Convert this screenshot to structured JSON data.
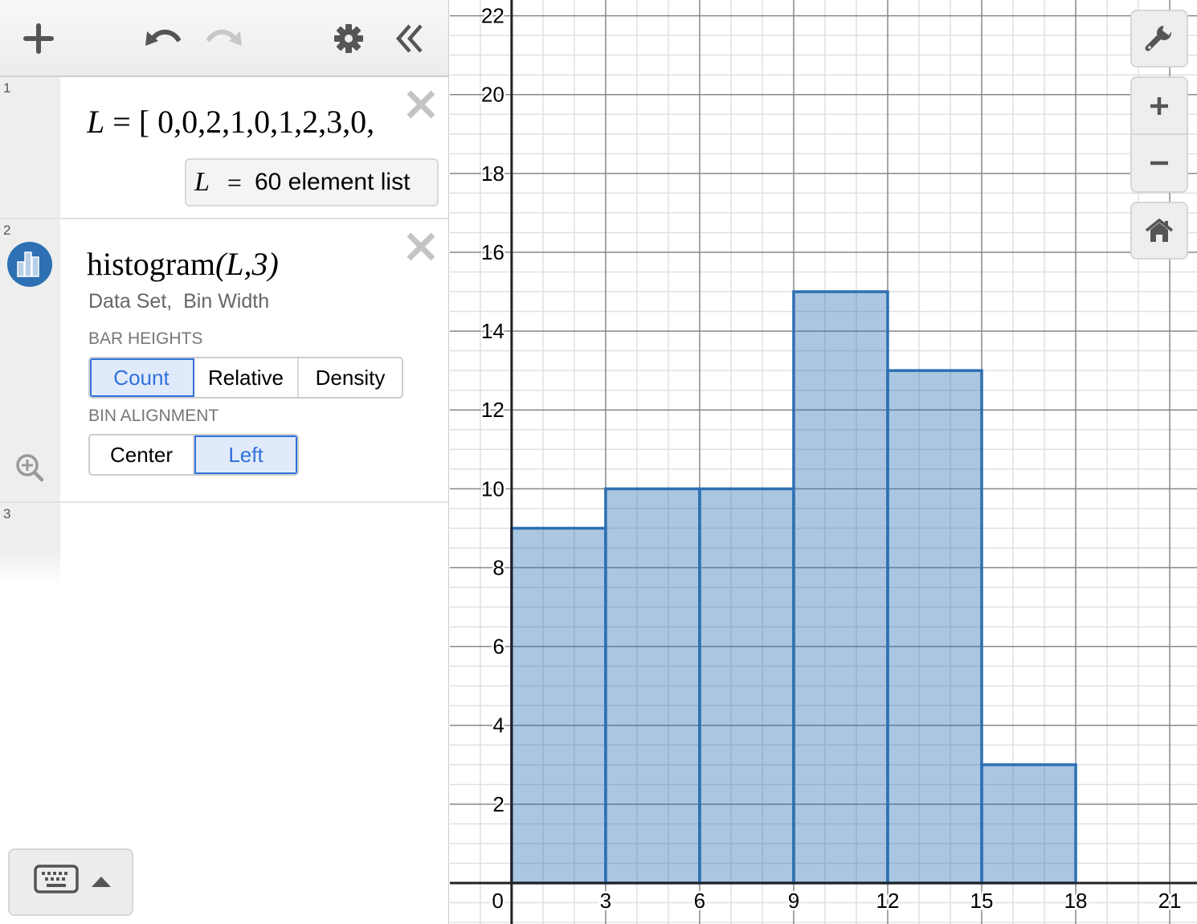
{
  "toolbar": {
    "add": "plus-icon",
    "undo": "undo-icon",
    "redo": "redo-icon",
    "settings": "gear-icon",
    "collapse": "double-chevron-left-icon"
  },
  "expressions": [
    {
      "number": "1",
      "lhs": "L",
      "eq": "=",
      "rhs": "[ 0,0,2,1,0,1,2,3,0,",
      "summary_var": "L",
      "summary_eq": "=",
      "summary_value": "60 element list"
    },
    {
      "number": "2",
      "formula_fn": "histogram",
      "formula_args": "(L,3)",
      "hint": "Data Set,  Bin Width",
      "bar_heights_label": "BAR HEIGHTS",
      "bar_heights_options": [
        "Count",
        "Relative",
        "Density"
      ],
      "bar_heights_selected": "Count",
      "bin_alignment_label": "BIN ALIGNMENT",
      "bin_alignment_options": [
        "Center",
        "Left"
      ],
      "bin_alignment_selected": "Left"
    },
    {
      "number": "3"
    }
  ],
  "graph_controls": {
    "wrench": "wrench-icon",
    "zoom_in": "plus-icon",
    "zoom_out": "minus-icon",
    "home": "home-icon"
  },
  "keyboard": {
    "icon": "keyboard-icon",
    "toggle": "caret-up-icon"
  },
  "colors": {
    "histogram": "#2d70b3",
    "selected": "#2f72dc"
  },
  "chart_data": {
    "type": "bar",
    "bins": [
      [
        0,
        3
      ],
      [
        3,
        6
      ],
      [
        6,
        9
      ],
      [
        9,
        12
      ],
      [
        12,
        15
      ],
      [
        15,
        18
      ]
    ],
    "values": [
      9,
      10,
      10,
      15,
      13,
      3
    ],
    "xlim": [
      -1.97,
      21.87
    ],
    "ylim": [
      -1.04,
      22.4
    ],
    "x_ticks": [
      "0",
      "3",
      "6",
      "9",
      "12",
      "15",
      "18",
      "21"
    ],
    "y_ticks": [
      "2",
      "4",
      "6",
      "8",
      "10",
      "12",
      "14",
      "16",
      "18",
      "20",
      "22"
    ],
    "grid": true
  }
}
